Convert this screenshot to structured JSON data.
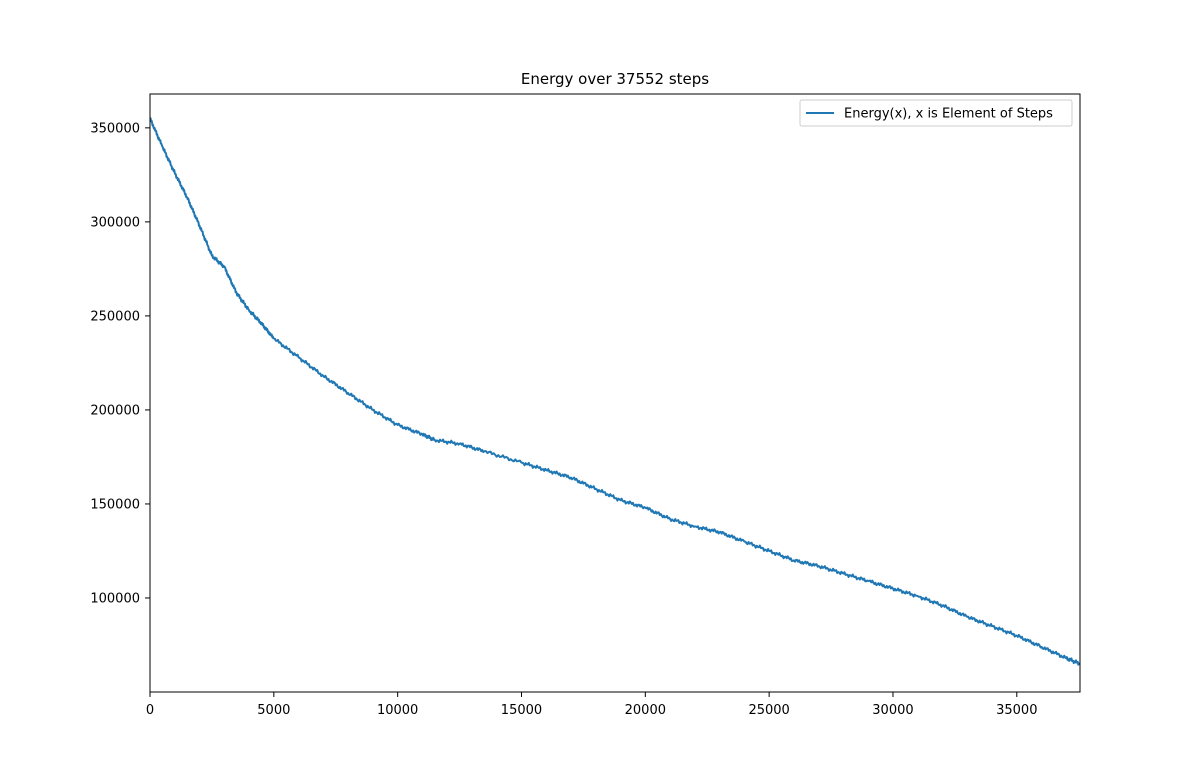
{
  "chart_data": {
    "type": "line",
    "title": "Energy over  37552 steps",
    "xlabel": "",
    "ylabel": "",
    "xlim": [
      0,
      37552
    ],
    "ylim": [
      50000,
      368000
    ],
    "xticks": [
      0,
      5000,
      10000,
      15000,
      20000,
      25000,
      30000,
      35000
    ],
    "yticks": [
      100000,
      150000,
      200000,
      250000,
      300000,
      350000
    ],
    "grid": false,
    "legend_position": "top-right",
    "series": [
      {
        "name": "Energy(x), x is Element of Steps",
        "color": "#1f77b4",
        "x": [
          0,
          500,
          1000,
          1500,
          2000,
          2500,
          3000,
          3500,
          4000,
          4500,
          5000,
          6000,
          7000,
          8000,
          9000,
          10000,
          11000,
          11500,
          12500,
          13500,
          15000,
          16000,
          17000,
          18000,
          19000,
          20000,
          21000,
          22000,
          23000,
          24000,
          25000,
          26000,
          27000,
          28000,
          29000,
          30000,
          31000,
          32000,
          33000,
          34000,
          35000,
          36000,
          37000,
          37552
        ],
        "y": [
          355000,
          340000,
          326000,
          313000,
          298000,
          282000,
          276000,
          262000,
          253000,
          246000,
          238000,
          228000,
          218000,
          209000,
          200000,
          192000,
          187000,
          184000,
          182000,
          178000,
          172000,
          168000,
          164000,
          158000,
          152000,
          148000,
          142000,
          138000,
          135000,
          130000,
          125000,
          120000,
          117000,
          113000,
          109000,
          105000,
          101000,
          96000,
          90000,
          85000,
          80000,
          74000,
          68000,
          65000
        ]
      }
    ]
  }
}
